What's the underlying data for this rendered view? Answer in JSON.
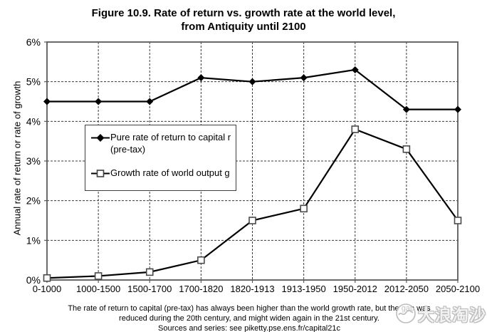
{
  "title": {
    "line1": "Figure 10.9. Rate of return vs. growth rate at the world level,",
    "line2": "from Antiquity until 2100"
  },
  "chart_data": {
    "type": "line",
    "title": "Figure 10.9. Rate of return vs. growth rate at the world level, from Antiquity until 2100",
    "categories": [
      "0-1000",
      "1000-1500",
      "1500-1700",
      "1700-1820",
      "1820-1913",
      "1913-1950",
      "1950-2012",
      "2012-2050",
      "2050-2100"
    ],
    "series": [
      {
        "name": "Pure rate of return to capital r (pre-tax)",
        "marker": "diamond",
        "values": [
          4.5,
          4.5,
          4.5,
          5.1,
          5.0,
          5.1,
          5.3,
          4.3,
          4.3
        ]
      },
      {
        "name": "Growth rate of world output g",
        "marker": "square",
        "values": [
          0.05,
          0.1,
          0.2,
          0.5,
          1.5,
          1.8,
          3.8,
          3.3,
          1.5
        ]
      }
    ],
    "xlabel": "",
    "ylabel": "Annual rate of return or rate of growth",
    "ylim": [
      0,
      6
    ],
    "yticks": [
      "0%",
      "1%",
      "2%",
      "3%",
      "4%",
      "5%",
      "6%"
    ],
    "grid": "dashed",
    "legend_position": "upper-left-inside"
  },
  "legend": {
    "items": [
      {
        "marker": "diamond-filled",
        "lines": [
          "Pure rate of return to capital r",
          "(pre-tax)"
        ]
      },
      {
        "marker": "square-open",
        "lines": [
          "Growth rate of world output g"
        ]
      }
    ]
  },
  "caption": {
    "line1": "The rate of return to capital (pre-tax) has always been higher than the world growth rate, but the gap was",
    "line2": "reduced during the 20th century, and might widen again in the 21st century.",
    "source": "Sources and series: see piketty.pse.ens.fr/capital21c"
  },
  "watermark": {
    "text": "大浪淘沙"
  },
  "colors": {
    "line": "#000000",
    "axis_border": "#595959",
    "gridline": "#3a3a3a",
    "marker_fill_open": "#ffffff",
    "background": "#ffffff"
  }
}
